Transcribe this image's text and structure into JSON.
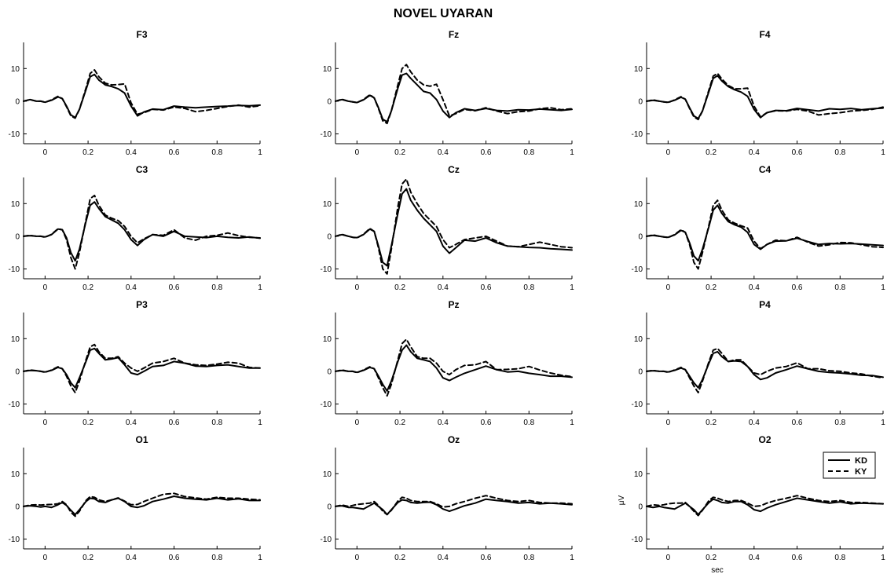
{
  "title": "NOVEL UYARAN",
  "legend": {
    "placement": "top-right of O2 panel",
    "entries": [
      {
        "label": "KD",
        "style": "solid"
      },
      {
        "label": "KY",
        "style": "dashed"
      }
    ]
  },
  "axes_labels": {
    "xlabel": "sec",
    "ylabel": "μV",
    "shown_on_panel": "O2"
  },
  "chart_data": {
    "type": "line",
    "xlim": [
      -0.1,
      1
    ],
    "ylim": [
      -13,
      18
    ],
    "xticks": [
      0,
      0.2,
      0.4,
      0.6,
      0.8,
      1
    ],
    "xtick_labels": [
      "0",
      "0.2",
      "0.4",
      "0.6",
      "0.8",
      "1"
    ],
    "yticks": [
      -10,
      0,
      10
    ],
    "ytick_labels": [
      "-10",
      "0",
      "10"
    ],
    "x": [
      -0.1,
      -0.07,
      -0.04,
      -0.02,
      0.0,
      0.03,
      0.06,
      0.08,
      0.1,
      0.12,
      0.14,
      0.16,
      0.19,
      0.21,
      0.23,
      0.25,
      0.28,
      0.31,
      0.34,
      0.37,
      0.4,
      0.43,
      0.46,
      0.5,
      0.55,
      0.6,
      0.65,
      0.7,
      0.75,
      0.8,
      0.85,
      0.9,
      0.95,
      1.0
    ],
    "series_names": [
      "KD",
      "KY"
    ],
    "panels": [
      {
        "name": "F3",
        "series": [
          {
            "name": "KD",
            "values": [
              0,
              0.5,
              0,
              0,
              -0.3,
              0.3,
              1.3,
              0.8,
              -1.5,
              -4.2,
              -5,
              -2.5,
              3.5,
              7.5,
              8.2,
              6.5,
              5,
              4.5,
              3.8,
              2.5,
              -1.5,
              -4.5,
              -3.3,
              -2.4,
              -2.6,
              -1.5,
              -1.8,
              -2,
              -1.8,
              -1.6,
              -1.5,
              -1.3,
              -1.4,
              -1.2
            ]
          },
          {
            "name": "KY",
            "values": [
              0,
              0.5,
              0,
              0,
              -0.3,
              0.4,
              1.5,
              0.8,
              -1.7,
              -4.5,
              -5.2,
              -2.5,
              4,
              8.5,
              9.6,
              7.5,
              5.5,
              5,
              5.1,
              5.3,
              -0.5,
              -4,
              -3.5,
              -2.5,
              -2.7,
              -1.8,
              -2.2,
              -3.2,
              -2.8,
              -2.2,
              -1.6,
              -1.2,
              -1.8,
              -1.4
            ]
          }
        ]
      },
      {
        "name": "Fz",
        "series": [
          {
            "name": "KD",
            "values": [
              0,
              0.5,
              0,
              -0.2,
              -0.4,
              0.4,
              1.8,
              1,
              -2,
              -5.5,
              -6.3,
              -3,
              4,
              8,
              8.5,
              7,
              5,
              3,
              2.5,
              0.5,
              -3,
              -5,
              -3.5,
              -2.3,
              -2.8,
              -2.2,
              -2.8,
              -3,
              -2.6,
              -2.7,
              -2.4,
              -2.6,
              -2.8,
              -2.5
            ]
          },
          {
            "name": "KY",
            "values": [
              0,
              0.6,
              0,
              -0.2,
              -0.4,
              0.5,
              2,
              1,
              -2.2,
              -6,
              -6.8,
              -3,
              5,
              10,
              11.2,
              9,
              6.5,
              5,
              4.6,
              5.2,
              0.5,
              -4.5,
              -3.8,
              -2.5,
              -2.9,
              -2,
              -3,
              -3.8,
              -3.2,
              -3,
              -2.3,
              -2,
              -2.6,
              -2.3
            ]
          }
        ]
      },
      {
        "name": "F4",
        "series": [
          {
            "name": "KD",
            "values": [
              0,
              0.3,
              0,
              -0.2,
              -0.3,
              0.3,
              1.2,
              0.6,
              -2,
              -4.5,
              -5.3,
              -3,
              3,
              7,
              7.8,
              6.2,
              4.5,
              3.5,
              2.8,
              1.5,
              -2.5,
              -5,
              -3.5,
              -2.8,
              -2.9,
              -2.2,
              -2.6,
              -3,
              -2.3,
              -2.5,
              -2.2,
              -2.6,
              -2.3,
              -2.1
            ]
          },
          {
            "name": "KY",
            "values": [
              0,
              0.4,
              0,
              -0.2,
              -0.4,
              0.4,
              1.4,
              0.6,
              -2.2,
              -4.8,
              -5.6,
              -3,
              3.5,
              7.7,
              8.5,
              6.8,
              4.8,
              3.8,
              3.8,
              4,
              -1.5,
              -4.8,
              -3.5,
              -2.9,
              -3,
              -2.5,
              -3,
              -4.2,
              -3.8,
              -3.5,
              -3,
              -2.8,
              -2.5,
              -1.8
            ]
          }
        ]
      },
      {
        "name": "C3",
        "series": [
          {
            "name": "KD",
            "values": [
              0,
              0.2,
              0,
              0,
              -0.2,
              0.5,
              2.2,
              2,
              -0.5,
              -5,
              -7.5,
              -4,
              4.5,
              9.5,
              10.5,
              8.5,
              6,
              5,
              4,
              2,
              -1,
              -2.8,
              -1,
              0.5,
              0,
              1.5,
              0,
              -0.2,
              -0.4,
              0,
              -0.3,
              -0.5,
              -0.2,
              -0.6
            ]
          },
          {
            "name": "KY",
            "values": [
              0,
              0.3,
              0,
              0,
              -0.3,
              0.6,
              2.3,
              2,
              -1,
              -6.5,
              -10,
              -5,
              5,
              11.5,
              12.5,
              9.5,
              6.5,
              5.5,
              4.8,
              3,
              0,
              -2,
              -0.8,
              0.5,
              0.3,
              2,
              -0.5,
              -1.2,
              0,
              0.3,
              1,
              0.2,
              -0.3,
              -0.5
            ]
          }
        ]
      },
      {
        "name": "Cz",
        "series": [
          {
            "name": "KD",
            "values": [
              0,
              0.5,
              0,
              -0.3,
              -0.4,
              0.5,
              2.2,
              1.5,
              -3,
              -8,
              -9,
              -3,
              7,
              13,
              14.5,
              11,
              8,
              5.5,
              3.5,
              1.5,
              -3,
              -5.2,
              -3.5,
              -1.2,
              -1.5,
              -0.5,
              -2,
              -3,
              -3.2,
              -3.4,
              -3.5,
              -3.8,
              -4,
              -4.2
            ]
          },
          {
            "name": "KY",
            "values": [
              0,
              0.6,
              0,
              -0.3,
              -0.5,
              0.6,
              2.4,
              1.5,
              -3.5,
              -10,
              -11.5,
              -4,
              9,
              16,
              17.5,
              13.5,
              10,
              7,
              5,
              3,
              -1,
              -3.5,
              -2.5,
              -1,
              -0.5,
              0,
              -1.5,
              -3,
              -3.2,
              -2.5,
              -1.8,
              -2.5,
              -3.2,
              -3.5
            ]
          }
        ]
      },
      {
        "name": "C4",
        "series": [
          {
            "name": "KD",
            "values": [
              0,
              0.3,
              0,
              -0.2,
              -0.3,
              0.4,
              1.8,
              1.2,
              -2,
              -6,
              -7.5,
              -4,
              3,
              8,
              9.5,
              7,
              4.5,
              3.5,
              2.8,
              1.2,
              -2.5,
              -4,
              -2.5,
              -1.5,
              -1.4,
              -0.6,
              -1.6,
              -2.5,
              -2.2,
              -2.3,
              -2.2,
              -2.4,
              -2.6,
              -2.8
            ]
          },
          {
            "name": "KY",
            "values": [
              0,
              0.4,
              0,
              -0.2,
              -0.4,
              0.5,
              2,
              1.2,
              -2.5,
              -8,
              -10,
              -5,
              3.5,
              9.5,
              11,
              8,
              5,
              4,
              3.2,
              2.5,
              -1.5,
              -3.8,
              -2.5,
              -1.2,
              -1.4,
              -0.3,
              -1.8,
              -3,
              -2.6,
              -1.9,
              -2,
              -2.6,
              -3.2,
              -3.4
            ]
          }
        ]
      },
      {
        "name": "P3",
        "series": [
          {
            "name": "KD",
            "values": [
              0,
              0.3,
              0.2,
              0,
              -0.2,
              0.3,
              1.2,
              0.8,
              -1,
              -3.5,
              -5,
              -2,
              3,
              6.5,
              7,
              5.5,
              3.5,
              3.8,
              4.2,
              2,
              -0.5,
              -1,
              0,
              1.5,
              1.8,
              3,
              2.5,
              1.6,
              1.5,
              1.8,
              2,
              1.5,
              1,
              1
            ]
          },
          {
            "name": "KY",
            "values": [
              0,
              0.4,
              0.2,
              0,
              -0.3,
              0.4,
              1.4,
              0.8,
              -1.5,
              -4.5,
              -6.5,
              -3,
              3.5,
              7.5,
              8.2,
              6,
              4,
              4,
              4.5,
              2.5,
              1,
              0,
              1,
              2.5,
              3,
              4,
              2.5,
              2,
              1.8,
              2.2,
              2.8,
              2.5,
              1.2,
              1
            ]
          }
        ]
      },
      {
        "name": "Pz",
        "series": [
          {
            "name": "KD",
            "values": [
              0,
              0.3,
              0,
              0,
              -0.3,
              0.3,
              1.2,
              0.8,
              -1.5,
              -4,
              -6,
              -3,
              3,
              6.5,
              8,
              6,
              4,
              3.5,
              3,
              1,
              -2,
              -2.8,
              -1.8,
              -0.6,
              0.5,
              1.6,
              0.5,
              -0.2,
              0,
              -0.6,
              -1,
              -1.5,
              -1.5,
              -1.8
            ]
          },
          {
            "name": "KY",
            "values": [
              0,
              0.4,
              0,
              0,
              -0.4,
              0.4,
              1.4,
              0.8,
              -2,
              -5,
              -7.5,
              -4,
              3.5,
              8.5,
              9.8,
              7.5,
              4.5,
              4,
              4,
              2.5,
              0,
              -1,
              0.5,
              1.8,
              2,
              3,
              0.5,
              0.6,
              0.8,
              1.5,
              0.4,
              -0.5,
              -1.2,
              -1.6
            ]
          }
        ]
      },
      {
        "name": "P4",
        "series": [
          {
            "name": "KD",
            "values": [
              0,
              0.2,
              0,
              0,
              -0.2,
              0.3,
              1,
              0.5,
              -1.5,
              -3.5,
              -5,
              -2.5,
              2.5,
              5.5,
              6,
              4.5,
              3,
              3.2,
              3,
              1.5,
              -1,
              -2.5,
              -2,
              -0.5,
              0.5,
              1.6,
              0.8,
              0,
              -0.3,
              -0.5,
              -0.8,
              -1.2,
              -1.3,
              -1.8
            ]
          },
          {
            "name": "KY",
            "values": [
              0,
              0.3,
              0,
              0,
              -0.3,
              0.4,
              1.2,
              0.5,
              -2,
              -4.5,
              -6.5,
              -3,
              3,
              6.5,
              7,
              5.5,
              3,
              3.5,
              3.5,
              1.5,
              -0.5,
              -1,
              0,
              1,
              1.5,
              2.6,
              0.8,
              0.8,
              0.2,
              0,
              -0.5,
              -0.8,
              -1.5,
              -2
            ]
          }
        ]
      },
      {
        "name": "O1",
        "series": [
          {
            "name": "KD",
            "values": [
              0,
              0.2,
              0,
              -0.2,
              0,
              -0.3,
              0.5,
              1.2,
              0.3,
              -1.2,
              -2.5,
              -1,
              1.5,
              2.5,
              2.3,
              1.5,
              1.2,
              2,
              2.5,
              1.5,
              0,
              -0.3,
              0.2,
              1.5,
              2.2,
              3.1,
              2.5,
              2.2,
              2,
              2.5,
              2,
              2.3,
              1.8,
              1.8
            ]
          },
          {
            "name": "KY",
            "values": [
              0,
              0.4,
              0.5,
              0.4,
              0.5,
              0.6,
              0.8,
              1.5,
              0.5,
              -1.8,
              -3,
              -1.5,
              1.8,
              3,
              2.8,
              2,
              1.5,
              2,
              2.6,
              1.6,
              0.5,
              0.6,
              1.5,
              2.5,
              3.7,
              4,
              3,
              2.6,
              2.2,
              2.8,
              2.5,
              2.5,
              2.2,
              2
            ]
          }
        ]
      },
      {
        "name": "Oz",
        "series": [
          {
            "name": "KD",
            "values": [
              0,
              0.2,
              -0.3,
              -0.3,
              -0.5,
              -0.8,
              0.3,
              1,
              0,
              -1,
              -2.5,
              -1,
              1.2,
              2,
              1.8,
              1.2,
              1,
              1.2,
              1.3,
              0.5,
              -0.8,
              -1.5,
              -0.8,
              0.2,
              1,
              2.2,
              1.8,
              1.5,
              1,
              1.2,
              0.8,
              1,
              0.8,
              0.5
            ]
          },
          {
            "name": "KY",
            "values": [
              0,
              0.4,
              0,
              0.3,
              0.6,
              0.8,
              1,
              1.5,
              0.3,
              -1.5,
              -2.5,
              -1.2,
              1.6,
              2.8,
              2.5,
              1.8,
              1.5,
              1.5,
              1.5,
              0.8,
              -0.2,
              0,
              0.8,
              1.5,
              2.5,
              3.3,
              2.5,
              1.8,
              1.5,
              1.8,
              1.2,
              1,
              1,
              0.8
            ]
          }
        ]
      },
      {
        "name": "O2",
        "series": [
          {
            "name": "KD",
            "values": [
              0,
              -0.3,
              0,
              -0.3,
              -0.5,
              -0.8,
              0.3,
              1,
              0,
              -1,
              -2.5,
              -1,
              1.2,
              2.2,
              1.8,
              1.2,
              1,
              1.5,
              1.5,
              0.5,
              -1,
              -1.5,
              -0.5,
              0.5,
              1.5,
              2.5,
              2,
              1.5,
              1,
              1.4,
              0.8,
              1,
              0.9,
              0.8
            ]
          },
          {
            "name": "KY",
            "values": [
              0,
              0.5,
              0.3,
              0.5,
              0.8,
              1,
              1,
              1.2,
              0,
              -1.5,
              -2.8,
              -1.2,
              1.8,
              2.8,
              2.5,
              2,
              1.5,
              1.8,
              1.8,
              1,
              0,
              0.2,
              1,
              1.8,
              2.5,
              3.3,
              2.5,
              1.8,
              1.5,
              1.8,
              1.2,
              1.2,
              1,
              0.8
            ]
          }
        ]
      }
    ]
  }
}
